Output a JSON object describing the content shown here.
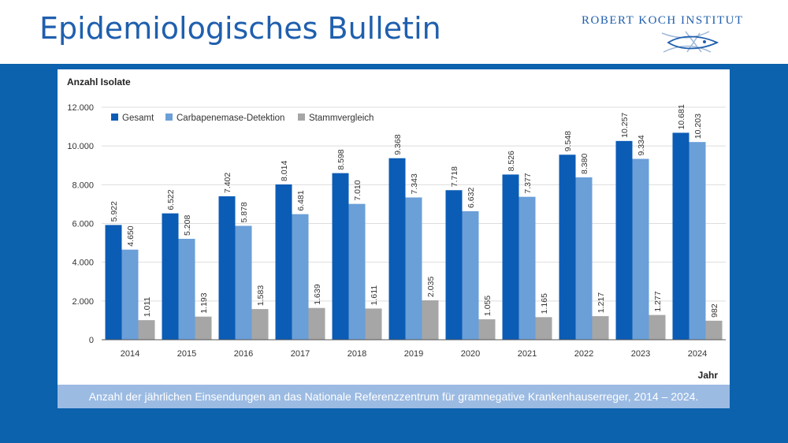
{
  "header": {
    "title": "Epidemiologisches Bulletin",
    "logo_text": "ROBERT KOCH INSTITUT"
  },
  "caption": "Anzahl der jährlichen Einsendungen an das Nationale Referenzzentrum für gramnegative Krankenhauserreger, 2014 – 2024.",
  "colors": {
    "band": "#0c62ad",
    "caption_bg": "#9cbbe3",
    "title": "#1f5fae"
  },
  "chart_data": {
    "type": "bar",
    "title": "",
    "ylabel": "Anzahl Isolate",
    "xlabel": "Jahr",
    "ylim": [
      0,
      12000
    ],
    "yticks": [
      0,
      2000,
      4000,
      6000,
      8000,
      10000,
      12000
    ],
    "ytick_labels": [
      "0",
      "2.000",
      "4.000",
      "6.000",
      "8.000",
      "10.000",
      "12.000"
    ],
    "grid": true,
    "legend_position": "top-left",
    "categories": [
      "2014",
      "2015",
      "2016",
      "2017",
      "2018",
      "2019",
      "2020",
      "2021",
      "2022",
      "2023",
      "2024"
    ],
    "series": [
      {
        "name": "Gesamt",
        "color": "#0b5cb5",
        "values": [
          5922,
          6522,
          7402,
          8014,
          8598,
          9368,
          7718,
          8526,
          9548,
          10257,
          10681
        ],
        "labels": [
          "5.922",
          "6.522",
          "7.402",
          "8.014",
          "8.598",
          "9.368",
          "7.718",
          "8.526",
          "9.548",
          "10.257",
          "10.681"
        ]
      },
      {
        "name": "Carbapenemase-Detektion",
        "color": "#6a9fd8",
        "values": [
          4650,
          5208,
          5878,
          6481,
          7010,
          7343,
          6632,
          7377,
          8380,
          9334,
          10203
        ],
        "labels": [
          "4.650",
          "5.208",
          "5.878",
          "6.481",
          "7.010",
          "7.343",
          "6.632",
          "7.377",
          "8.380",
          "9.334",
          "10.203"
        ]
      },
      {
        "name": "Stammvergleich",
        "color": "#a6a6a6",
        "values": [
          1011,
          1193,
          1583,
          1639,
          1611,
          2035,
          1055,
          1165,
          1217,
          1277,
          982
        ],
        "labels": [
          "1.011",
          "1.193",
          "1.583",
          "1.639",
          "1.611",
          "2.035",
          "1.055",
          "1.165",
          "1.217",
          "1.277",
          "982"
        ]
      }
    ]
  }
}
